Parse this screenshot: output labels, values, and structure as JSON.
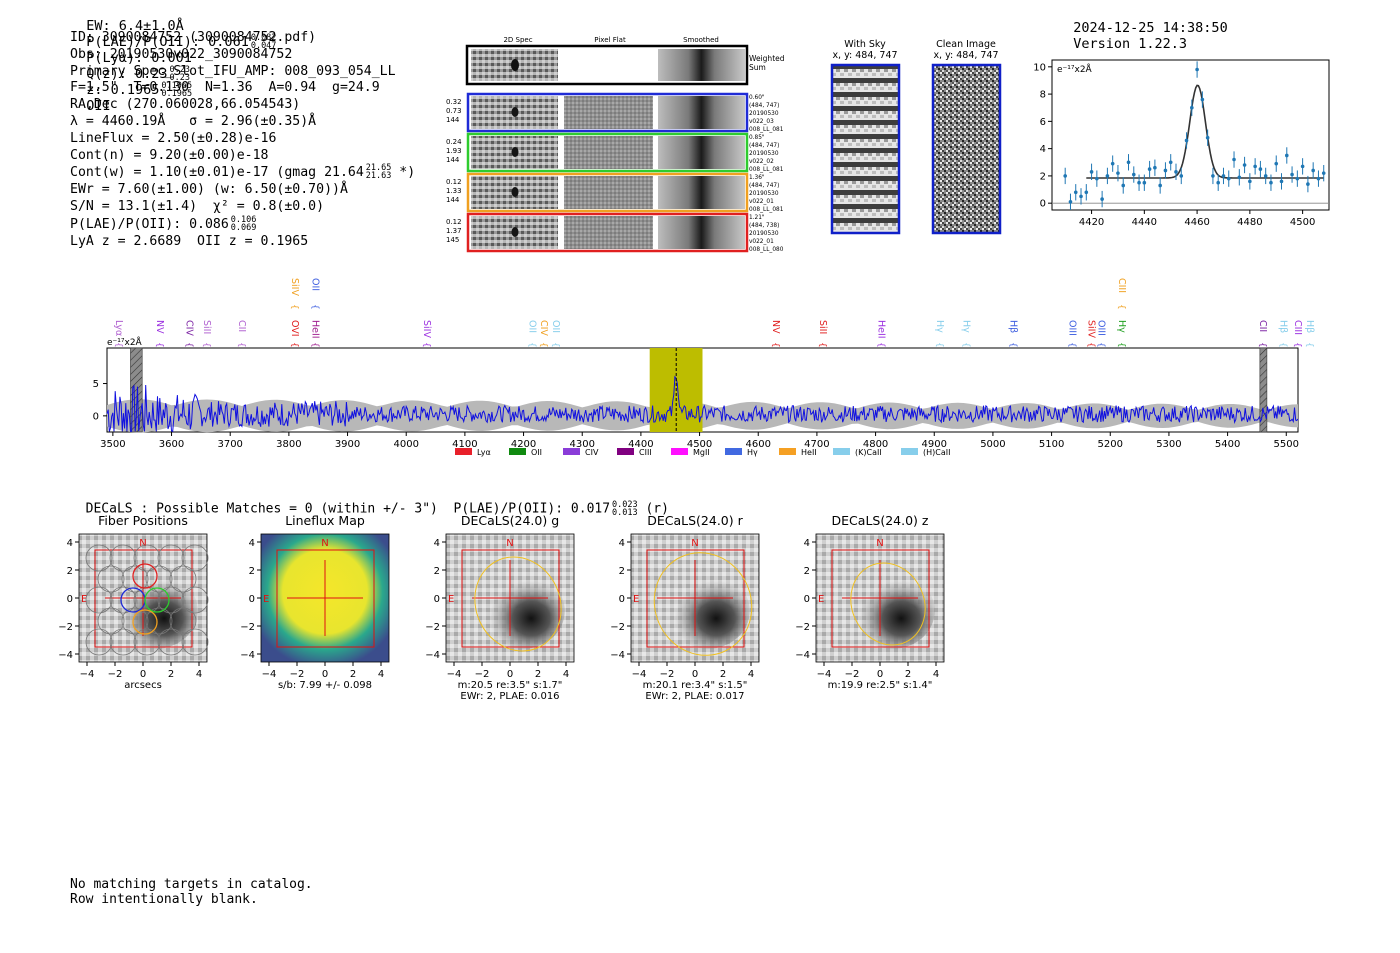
{
  "header": {
    "ew_label": "EW: 6.4±1.0Å",
    "plae_label": "P(LAE)/P(OII): 0.061",
    "plae_hi": "0.082",
    "plae_lo": "0.047",
    "plya": "P(Lyα): 0.001",
    "qz_label": "Q(z): 0.23",
    "qz_hi": "0.23",
    "qz_lo": "0.23",
    "z_label": "z: 0.1965",
    "z_hi": "0.1965",
    "z_lo": "0.1965",
    "z_line": "OII",
    "timestamp": "2024-12-25 14:38:50",
    "version": "Version 1.22.3"
  },
  "info": {
    "id": "ID: 3090084752 (3090084752.pdf)",
    "obs": "Obs: 20190530v022_3090084752",
    "primary": "Primary Spec_Slot_IFU_AMP: 008_093_054_LL",
    "params": "F=1.5\"  T=0.130  N=1.36  A=0.94  g=24.9",
    "radec": "RA,Dec (270.060028,66.054543)",
    "lambda": "λ = 4460.19Å   σ = 2.96(±0.35)Å",
    "lineflux": "LineFlux = 2.50(±0.28)e-16",
    "contn": "Cont(n) = 9.20(±0.00)e-18",
    "contw": "Cont(w) = 1.10(±0.01)e-17 (gmag 21.64",
    "contw_hi": "21.65",
    "contw_lo": "21.63",
    "contw_end": " *)",
    "ewr": "EWr = 7.60(±1.00) (w: 6.50(±0.70))Å",
    "sn": "S/N = 13.1(±1.4)  χ² = 0.8(±0.0)",
    "plae": "P(LAE)/P(OII): 0.086",
    "plae_hi": "0.106",
    "plae_lo": "0.069",
    "lyaz": "LyA z = 2.6689  OII z = 0.1965"
  },
  "cutouts": {
    "col_2d": "2D Spec",
    "col_flat": "Pixel Flat",
    "col_smooth": "Smoothed",
    "weighted": [
      "Weighted",
      "Sum"
    ],
    "rows": [
      {
        "left": [
          "0.32",
          "0.73",
          "144"
        ],
        "right": [
          "0.60\"",
          "(484, 747)",
          "20190530",
          "v022_03",
          "008_LL_081"
        ],
        "color": "#1f2bd6"
      },
      {
        "left": [
          "0.24",
          "1.93",
          "144"
        ],
        "right": [
          "0.85\"",
          "(484, 747)",
          "20190530",
          "v022_02",
          "008_LL_081"
        ],
        "color": "#2ecc2e"
      },
      {
        "left": [
          "0.12",
          "1.33",
          "144"
        ],
        "right": [
          "1.36\"",
          "(484, 747)",
          "20190530",
          "v022_01",
          "008_LL_081"
        ],
        "color": "#f0a020"
      },
      {
        "left": [
          "0.12",
          "1.37",
          "145"
        ],
        "right": [
          "1.21\"",
          "(484, 738)",
          "20190530",
          "v022_01",
          "008_LL_080"
        ],
        "color": "#e02020"
      }
    ],
    "sky_title": "With Sky",
    "sky_coords": "x, y: 484, 747",
    "clean_title": "Clean Image",
    "clean_coords": "x, y: 484, 747"
  },
  "decals": {
    "line": "DECaLS : Possible Matches = 0 (within +/- 3\")  P(LAE)/P(OII): 0.017",
    "hi": "0.023",
    "lo": "0.013",
    "band": " (r)",
    "panels": [
      {
        "title": "Fiber Positions",
        "caption1": "arcsecs",
        "caption2": ""
      },
      {
        "title": "Lineflux Map",
        "caption1": "s/b: 7.99 +/- 0.098",
        "caption2": ""
      },
      {
        "title": "DECaLS(24.0) g",
        "caption1": "m:20.5  re:3.5\"  s:1.7\"",
        "caption2": "EWr: 2, PLAE: 0.016"
      },
      {
        "title": "DECaLS(24.0) r",
        "caption1": "m:20.1  re:3.4\"  s:1.5\"",
        "caption2": "EWr: 2, PLAE: 0.017"
      },
      {
        "title": "DECaLS(24.0) z",
        "caption1": "m:19.9  re:2.5\"  s:1.4\"",
        "caption2": ""
      }
    ],
    "compass_n": "N",
    "compass_e": "E",
    "ticks": [
      "4",
      "2",
      "0",
      "−2",
      "−4"
    ],
    "xticks": [
      "−4",
      "−2",
      "0",
      "2",
      "4"
    ]
  },
  "footer": {
    "line1": "No matching targets in catalog.",
    "line2": "Row intentionally blank."
  },
  "chart_data": [
    {
      "type": "line",
      "name": "zoom-line-fit",
      "title": "",
      "ylabel": "e⁻¹⁷x2Å",
      "xlim": [
        4405,
        4510
      ],
      "ylim": [
        -0.5,
        10.5
      ],
      "xticks": [
        4420,
        4440,
        4460,
        4480,
        4500
      ],
      "yticks": [
        0,
        2,
        4,
        6,
        8,
        10
      ],
      "fit": {
        "center": 4460.19,
        "sigma": 2.96,
        "amplitude": 6.8,
        "continuum": 1.85
      },
      "points": {
        "x": [
          4410,
          4412,
          4414,
          4416,
          4418,
          4420,
          4422,
          4424,
          4426,
          4428,
          4430,
          4432,
          4434,
          4436,
          4438,
          4440,
          4442,
          4444,
          4446,
          4448,
          4450,
          4452,
          4454,
          4456,
          4458,
          4460,
          4462,
          4464,
          4466,
          4468,
          4470,
          4472,
          4474,
          4476,
          4478,
          4480,
          4482,
          4484,
          4486,
          4488,
          4490,
          4492,
          4494,
          4496,
          4498,
          4500,
          4502,
          4504,
          4506,
          4508
        ],
        "y": [
          2.0,
          0.1,
          0.8,
          0.5,
          0.8,
          2.3,
          1.8,
          0.3,
          2.0,
          2.9,
          2.2,
          1.3,
          3.0,
          2.1,
          1.5,
          1.5,
          2.5,
          2.6,
          1.3,
          2.4,
          3.0,
          2.3,
          2.0,
          4.6,
          7.0,
          9.8,
          7.6,
          4.8,
          2.0,
          1.5,
          2.0,
          1.8,
          3.2,
          1.9,
          2.8,
          1.6,
          2.7,
          2.5,
          2.0,
          1.5,
          2.9,
          1.6,
          3.5,
          2.1,
          1.8,
          2.7,
          1.4,
          2.4,
          1.8,
          2.2
        ]
      }
    },
    {
      "type": "line",
      "name": "full-spectrum",
      "ylabel": "e⁻¹⁷x2Å",
      "xlim": [
        3490,
        5520
      ],
      "ylim": [
        -2.5,
        10.5
      ],
      "xticks": [
        3500,
        3600,
        3700,
        3800,
        3900,
        4000,
        4100,
        4200,
        4300,
        4400,
        4500,
        4600,
        4700,
        4800,
        4900,
        5000,
        5100,
        5200,
        5300,
        5400,
        5500
      ],
      "yticks": [
        0,
        5
      ],
      "highlight_range": [
        4415,
        4505
      ],
      "marker_x": 4460.19,
      "masked_ranges": [
        [
          3530,
          3550
        ],
        [
          5455,
          5467
        ]
      ],
      "lines": [
        {
          "label": "Lyα",
          "x": 3500,
          "color": "#b060d0",
          "row": "low"
        },
        {
          "label": "NV",
          "x": 3570,
          "color": "#9b30e0",
          "row": "low"
        },
        {
          "label": "CIV",
          "x": 3620,
          "color": "#7a1fa2",
          "row": "low"
        },
        {
          "label": "SiII",
          "x": 3650,
          "color": "#b060d0",
          "row": "low"
        },
        {
          "label": "CII",
          "x": 3710,
          "color": "#b060d0",
          "row": "low"
        },
        {
          "label": "SiIV",
          "x": 3800,
          "color": "#f0a020",
          "row": "high"
        },
        {
          "label": "OVI",
          "x": 3800,
          "color": "#e02020",
          "row": "low"
        },
        {
          "label": "OII",
          "x": 3835,
          "color": "#4060e0",
          "row": "high"
        },
        {
          "label": "HeII",
          "x": 3835,
          "color": "#a02090",
          "row": "low"
        },
        {
          "label": "SiIV",
          "x": 4025,
          "color": "#9b30e0",
          "row": "low"
        },
        {
          "label": "OII",
          "x": 4205,
          "color": "#87ceeb",
          "row": "low"
        },
        {
          "label": "CIV",
          "x": 4225,
          "color": "#f0a020",
          "row": "low"
        },
        {
          "label": "OII",
          "x": 4245,
          "color": "#87ceeb",
          "row": "low"
        },
        {
          "label": "NV",
          "x": 4620,
          "color": "#e02020",
          "row": "low"
        },
        {
          "label": "SiII",
          "x": 4700,
          "color": "#e02020",
          "row": "low"
        },
        {
          "label": "HeII",
          "x": 4800,
          "color": "#9b30e0",
          "row": "low"
        },
        {
          "label": "Hγ",
          "x": 4900,
          "color": "#87ceeb",
          "row": "low"
        },
        {
          "label": "Hγ",
          "x": 4945,
          "color": "#87ceeb",
          "row": "low"
        },
        {
          "label": "Hβ",
          "x": 5025,
          "color": "#4060e0",
          "row": "low"
        },
        {
          "label": "OIII",
          "x": 5125,
          "color": "#4060e0",
          "row": "low"
        },
        {
          "label": "SiIV",
          "x": 5158,
          "color": "#e02020",
          "row": "low"
        },
        {
          "label": "OIII",
          "x": 5175,
          "color": "#4060e0",
          "row": "low"
        },
        {
          "label": "CIII",
          "x": 5210,
          "color": "#f0a020",
          "row": "high"
        },
        {
          "label": "Hγ",
          "x": 5210,
          "color": "#20a020",
          "row": "low"
        },
        {
          "label": "CII",
          "x": 5450,
          "color": "#7a1fa2",
          "row": "low"
        },
        {
          "label": "Hβ",
          "x": 5485,
          "color": "#87ceeb",
          "row": "low"
        },
        {
          "label": "CIII",
          "x": 5510,
          "color": "#9b30e0",
          "row": "low"
        },
        {
          "label": "Hβ",
          "x": 5530,
          "color": "#87ceeb",
          "row": "low"
        }
      ],
      "legend": [
        {
          "label": "Lyα",
          "color": "#e8202a"
        },
        {
          "label": "OII",
          "color": "#108a10"
        },
        {
          "label": "CIV",
          "color": "#8a3cd8"
        },
        {
          "label": "CIII",
          "color": "#800080"
        },
        {
          "label": "MgII",
          "color": "#ff10ff"
        },
        {
          "label": "Hγ",
          "color": "#4169e1"
        },
        {
          "label": "HeII",
          "color": "#f5a023"
        },
        {
          "label": "(K)CaII",
          "color": "#87ceeb"
        },
        {
          "label": "(H)CaII",
          "color": "#87ceeb"
        }
      ]
    }
  ]
}
